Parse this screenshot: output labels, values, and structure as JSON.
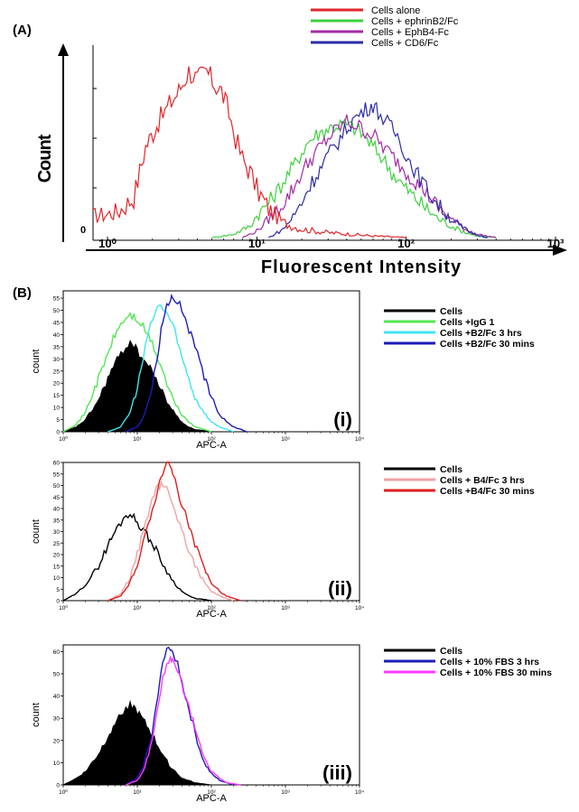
{
  "panel_labels": {
    "A": "(A)",
    "B": "(B)"
  },
  "colors": {
    "red": "#e0262b",
    "green": "#3ed13e",
    "purple": "#a22ca6",
    "navy": "#2b2ba6",
    "black": "#000000",
    "lightgreen": "#53e653",
    "cyan": "#3fe6f0",
    "blue": "#1c1cb8",
    "pink": "#f0a2a2",
    "red2": "#e01f1f",
    "magenta": "#ff38ff"
  },
  "chart_data": [
    {
      "id": "A",
      "type": "line",
      "title": "",
      "xlabel": "Fluorescent Intensity",
      "ylabel": "Count",
      "xscale": "log",
      "xlim": [
        0.8,
        1000
      ],
      "x_tick_labels": [
        "10⁰",
        "10¹",
        "10²",
        "10³"
      ],
      "y_tick_labels": [
        "0"
      ],
      "ylim": [
        0,
        110
      ],
      "legend_position": "top-right",
      "series": [
        {
          "name": "Cells alone",
          "color_key": "red",
          "x": [
            0.8,
            1.0,
            1.2,
            1.5,
            1.8,
            2.2,
            2.6,
            3.0,
            3.5,
            4.0,
            4.6,
            5.2,
            5.8,
            6.5,
            7.2,
            8.0,
            9.0,
            10,
            12,
            15,
            20,
            30,
            60,
            100
          ],
          "y": [
            14,
            15,
            17,
            25,
            55,
            70,
            80,
            88,
            100,
            95,
            100,
            92,
            88,
            75,
            60,
            48,
            40,
            30,
            18,
            10,
            6,
            4,
            2,
            1
          ]
        },
        {
          "name": "Cells + ephrinB2/Fc",
          "color_key": "green",
          "x": [
            5,
            7,
            9,
            10,
            12,
            14,
            16,
            18,
            20,
            22,
            25,
            30,
            35,
            40,
            45,
            50,
            60,
            70,
            80,
            100,
            130,
            160,
            200,
            250,
            300,
            400
          ],
          "y": [
            1,
            3,
            8,
            14,
            22,
            30,
            38,
            45,
            52,
            58,
            62,
            66,
            68,
            68,
            66,
            63,
            55,
            48,
            40,
            30,
            20,
            13,
            8,
            4,
            2,
            1
          ]
        },
        {
          "name": "Cells + EphB4-Fc",
          "color_key": "purple",
          "x": [
            8,
            10,
            12,
            14,
            16,
            18,
            20,
            25,
            30,
            35,
            40,
            45,
            50,
            60,
            70,
            80,
            100,
            130,
            160,
            200,
            250,
            300,
            400
          ],
          "y": [
            1,
            5,
            12,
            18,
            25,
            32,
            40,
            52,
            60,
            66,
            70,
            68,
            66,
            62,
            55,
            50,
            40,
            30,
            20,
            12,
            6,
            3,
            1
          ]
        },
        {
          "name": "Cells + CD6/Fc",
          "color_key": "navy",
          "x": [
            12,
            15,
            18,
            20,
            22,
            25,
            28,
            30,
            35,
            40,
            45,
            50,
            55,
            60,
            65,
            70,
            80,
            90,
            100,
            120,
            150,
            180,
            220,
            270,
            350
          ],
          "y": [
            1,
            6,
            15,
            22,
            30,
            38,
            45,
            50,
            58,
            66,
            72,
            75,
            78,
            80,
            76,
            72,
            66,
            60,
            50,
            38,
            25,
            16,
            9,
            4,
            1
          ]
        }
      ]
    },
    {
      "id": "B-i",
      "type": "area",
      "panel_label": "(i)",
      "xlabel": "APC-A",
      "ylabel": "count",
      "xscale": "log",
      "xlim": [
        1,
        10000
      ],
      "ylim": [
        0,
        58
      ],
      "x_tick_labels": [
        "10⁰",
        "10¹",
        "10²",
        "10³",
        "10⁴"
      ],
      "y_ticks": [
        0,
        5,
        10,
        15,
        20,
        25,
        30,
        35,
        40,
        45,
        50,
        55
      ],
      "legend_position": "right",
      "series": [
        {
          "name": "Cells",
          "color_key": "black",
          "filled": true,
          "x": [
            1,
            1.5,
            2,
            3,
            4,
            5,
            6,
            7,
            8,
            9,
            10,
            12,
            15,
            18,
            22,
            27,
            33,
            40,
            50,
            60,
            80,
            100
          ],
          "y": [
            0,
            2,
            5,
            13,
            22,
            28,
            32,
            35,
            37,
            36,
            33,
            30,
            26,
            22,
            16,
            11,
            7,
            4,
            2,
            1,
            0.5,
            0
          ]
        },
        {
          "name": "Cells +IgG 1",
          "color_key": "lightgreen",
          "x": [
            1,
            1.5,
            2,
            3,
            4,
            5,
            6,
            7,
            8,
            9,
            10,
            12,
            15,
            18,
            22,
            27,
            33,
            40,
            50,
            60,
            80,
            100
          ],
          "y": [
            0,
            3,
            8,
            22,
            32,
            40,
            44,
            47,
            48,
            47,
            46,
            43,
            38,
            32,
            25,
            17,
            11,
            7,
            4,
            2,
            1,
            0
          ]
        },
        {
          "name": "Cells +B2/Fc 3 hrs",
          "color_key": "cyan",
          "x": [
            4,
            6,
            8,
            10,
            12,
            14,
            16,
            18,
            20,
            22,
            25,
            30,
            35,
            40,
            50,
            60,
            80,
            100,
            130,
            160,
            200
          ],
          "y": [
            0,
            2,
            8,
            18,
            30,
            40,
            46,
            50,
            52,
            51,
            49,
            44,
            38,
            30,
            22,
            14,
            8,
            4,
            2,
            1,
            0
          ]
        },
        {
          "name": "Cells +B2/Fc 30 mins",
          "color_key": "blue",
          "x": [
            7,
            10,
            12,
            15,
            18,
            20,
            22,
            25,
            28,
            30,
            35,
            40,
            50,
            60,
            70,
            80,
            100,
            130,
            160,
            200,
            250,
            300
          ],
          "y": [
            0,
            2,
            6,
            15,
            28,
            38,
            46,
            52,
            55,
            56,
            54,
            50,
            42,
            35,
            28,
            22,
            14,
            7,
            4,
            2,
            1,
            0
          ]
        }
      ]
    },
    {
      "id": "B-ii",
      "type": "line",
      "panel_label": "(ii)",
      "xlabel": "APC-A",
      "ylabel": "count",
      "xscale": "log",
      "xlim": [
        1,
        10000
      ],
      "ylim": [
        0,
        60
      ],
      "x_tick_labels": [
        "10⁰",
        "10¹",
        "10²",
        "10³",
        "10⁴"
      ],
      "y_ticks": [
        0,
        5,
        10,
        15,
        20,
        25,
        30,
        35,
        40,
        45,
        50,
        55,
        60
      ],
      "legend_position": "right",
      "series": [
        {
          "name": "Cells",
          "color_key": "black",
          "x": [
            1,
            1.5,
            2,
            3,
            4,
            5,
            6,
            7,
            8,
            9,
            10,
            12,
            15,
            18,
            22,
            27,
            33,
            40,
            50,
            60,
            80,
            100
          ],
          "y": [
            0,
            3,
            7,
            15,
            24,
            30,
            34,
            37,
            38,
            36,
            34,
            31,
            26,
            22,
            16,
            11,
            7,
            4,
            2,
            1,
            0.5,
            0
          ]
        },
        {
          "name": "Cells + B4/Fc 3 hrs",
          "color_key": "pink",
          "x": [
            4,
            6,
            8,
            10,
            12,
            14,
            16,
            18,
            20,
            22,
            25,
            30,
            35,
            40,
            50,
            60,
            80,
            100,
            130,
            160,
            200
          ],
          "y": [
            0,
            3,
            10,
            20,
            30,
            38,
            44,
            48,
            50,
            50,
            48,
            42,
            36,
            30,
            22,
            15,
            8,
            4,
            2,
            1,
            0
          ]
        },
        {
          "name": "Cells +B4/Fc 30 mins",
          "color_key": "red2",
          "x": [
            4,
            6,
            8,
            10,
            12,
            14,
            16,
            18,
            20,
            22,
            25,
            28,
            30,
            35,
            40,
            50,
            60,
            80,
            100,
            130,
            160,
            200,
            250
          ],
          "y": [
            0,
            2,
            8,
            16,
            25,
            32,
            40,
            46,
            52,
            56,
            59,
            58,
            55,
            48,
            42,
            32,
            24,
            14,
            8,
            4,
            2,
            1,
            0
          ]
        }
      ]
    },
    {
      "id": "B-iii",
      "type": "area",
      "panel_label": "(iii)",
      "xlabel": "APC-A",
      "ylabel": "count",
      "xscale": "log",
      "xlim": [
        1,
        10000
      ],
      "ylim": [
        0,
        63
      ],
      "x_tick_labels": [
        "10⁰",
        "10¹",
        "10²",
        "10³",
        "10⁴"
      ],
      "y_ticks": [
        0,
        10,
        20,
        30,
        40,
        50,
        60
      ],
      "legend_position": "right",
      "series": [
        {
          "name": "Cells",
          "color_key": "black",
          "filled": true,
          "x": [
            1,
            1.5,
            2,
            3,
            4,
            5,
            6,
            7,
            8,
            9,
            10,
            12,
            15,
            18,
            22,
            27,
            33,
            40,
            50,
            60,
            80,
            100
          ],
          "y": [
            0,
            3,
            6,
            14,
            22,
            28,
            32,
            35,
            36,
            35,
            33,
            29,
            24,
            19,
            14,
            9,
            6,
            3,
            2,
            1,
            0.5,
            0
          ]
        },
        {
          "name": "Cells + 10% FBS 3 hrs",
          "color_key": "blue",
          "x": [
            7,
            10,
            12,
            15,
            18,
            20,
            22,
            25,
            28,
            30,
            35,
            40,
            50,
            60,
            70,
            80,
            100,
            130,
            160,
            200
          ],
          "y": [
            0,
            3,
            8,
            20,
            35,
            45,
            55,
            60,
            62,
            60,
            55,
            46,
            34,
            24,
            16,
            10,
            5,
            2,
            1,
            0
          ]
        },
        {
          "name": "Cells + 10% FBS 30 mins",
          "color_key": "magenta",
          "x": [
            7,
            10,
            12,
            15,
            18,
            20,
            22,
            25,
            28,
            30,
            35,
            40,
            50,
            60,
            70,
            80,
            100,
            130,
            160,
            200,
            250
          ],
          "y": [
            0,
            2,
            6,
            16,
            30,
            40,
            48,
            54,
            56,
            55,
            52,
            45,
            35,
            26,
            18,
            12,
            6,
            3,
            1,
            0.5,
            0
          ]
        }
      ]
    }
  ]
}
